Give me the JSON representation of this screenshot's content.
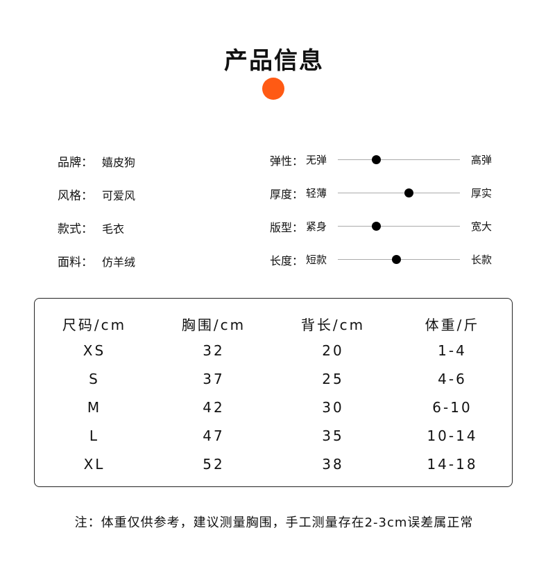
{
  "title": "产品信息",
  "accent_color": "#FF5A14",
  "attributes": [
    {
      "label": "品牌：",
      "value": "嬉皮狗"
    },
    {
      "label": "风格：",
      "value": "可爱风"
    },
    {
      "label": "款式：",
      "value": "毛衣"
    },
    {
      "label": "面料：",
      "value": "仿羊绒"
    }
  ],
  "scales": [
    {
      "label": "弹性：",
      "low": "无弹",
      "high": "高弹",
      "level": 0.31
    },
    {
      "label": "厚度：",
      "low": "轻薄",
      "high": "厚实",
      "level": 0.58
    },
    {
      "label": "版型：",
      "low": "紧身",
      "high": "宽大",
      "level": 0.31
    },
    {
      "label": "长度：",
      "low": "短款",
      "high": "长款",
      "level": 0.48
    }
  ],
  "size_table": {
    "headers": [
      "尺码/cm",
      "胸围/cm",
      "背长/cm",
      "体重/斤"
    ],
    "rows": [
      [
        "XS",
        "32",
        "20",
        "1-4"
      ],
      [
        "S",
        "37",
        "25",
        "4-6"
      ],
      [
        "M",
        "42",
        "30",
        "6-10"
      ],
      [
        "L",
        "47",
        "35",
        "10-14"
      ],
      [
        "XL",
        "52",
        "38",
        "14-18"
      ]
    ]
  },
  "note": "注：体重仅供参考，建议测量胸围，手工测量存在2-3cm误差属正常"
}
